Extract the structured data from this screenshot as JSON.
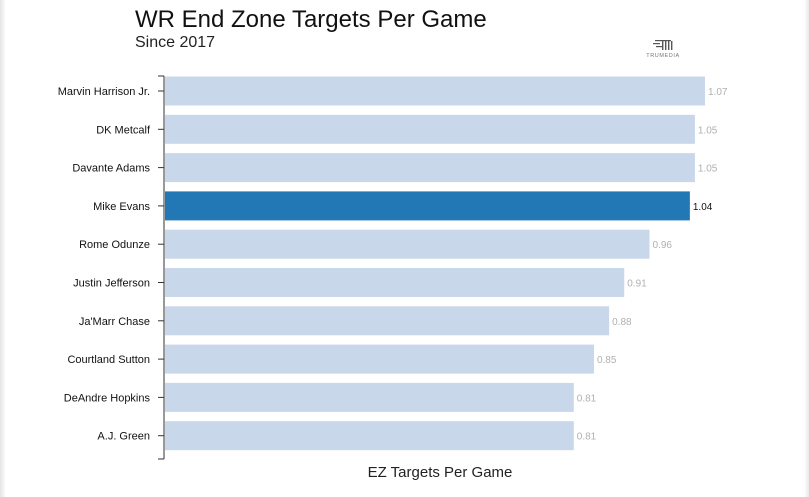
{
  "header": {
    "title": "WR End Zone Targets Per Game",
    "subtitle": "Since 2017"
  },
  "logo": {
    "text": "TRUMEDIA",
    "icon": "trumedia-logo-icon"
  },
  "colors": {
    "bar_default": "#c9d7ea",
    "bar_highlight": "#2178b5",
    "label_default": "#b0b0b0",
    "label_highlight": "#111111",
    "axis": "#333333"
  },
  "chart_data": {
    "type": "bar",
    "orientation": "horizontal",
    "title": "WR End Zone Targets Per Game",
    "subtitle": "Since 2017",
    "xlabel": "EZ Targets Per Game",
    "ylabel": "",
    "xlim": [
      0,
      1.07
    ],
    "grid": false,
    "highlight": "Mike Evans",
    "categories": [
      "Marvin Harrison Jr.",
      "DK Metcalf",
      "Davante Adams",
      "Mike Evans",
      "Rome Odunze",
      "Justin Jefferson",
      "Ja'Marr Chase",
      "Courtland Sutton",
      "DeAndre Hopkins",
      "A.J. Green"
    ],
    "values": [
      1.07,
      1.05,
      1.05,
      1.04,
      0.96,
      0.91,
      0.88,
      0.85,
      0.81,
      0.81
    ],
    "value_labels": [
      "1.07",
      "1.05",
      "1.05",
      "1.04",
      "0.96",
      "0.91",
      "0.88",
      "0.85",
      "0.81",
      "0.81"
    ]
  }
}
